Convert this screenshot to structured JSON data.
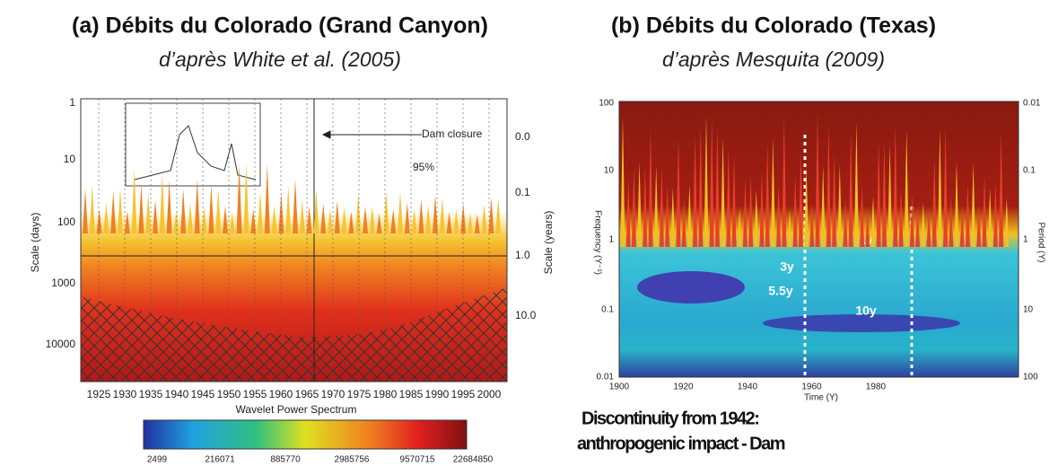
{
  "panel_a": {
    "title": "(a) Débits du Colorado (Grand Canyon)",
    "subtitle": "d’après White et al. (2005)",
    "y_label": "Scale (days)",
    "y2_label": "Scale (years)",
    "yticks": [
      "1",
      "10",
      "100",
      "1000",
      "10000"
    ],
    "y2ticks": [
      "0.0",
      "0.1",
      "1.0",
      "10.0"
    ],
    "xticks": [
      "1925",
      "1930",
      "1935",
      "1940",
      "1945",
      "1950",
      "1955",
      "1960",
      "1965",
      "1970",
      "1975",
      "1980",
      "1985",
      "1990",
      "1995",
      "2000"
    ],
    "annotations": [
      "Dam closure",
      "95%"
    ],
    "colorbar_title": "Wavelet Power Spectrum",
    "colorbar_ticks": [
      "2499",
      "216071",
      "885770",
      "2985756",
      "9570715",
      "22684850"
    ]
  },
  "panel_b": {
    "title": "(b) Débits du Colorado (Texas)",
    "subtitle": "d’après Mesquita (2009)",
    "y_label": "Frequency (Y⁻¹)",
    "y2_label": "Period (Y)",
    "x_label": "Time (Y)",
    "yticks": [
      "100",
      "10",
      "1",
      "0.1",
      "0.01"
    ],
    "y2ticks": [
      "0.01",
      "0.1",
      "1",
      "10",
      "100"
    ],
    "xticks": [
      "1900",
      "1920",
      "1940",
      "1960",
      "1980"
    ],
    "annotations": [
      "1y",
      "3y",
      "5.5y",
      "10y"
    ],
    "note": [
      "Discontinuity from 1942:",
      "anthropogenic impact - Dam"
    ]
  }
}
